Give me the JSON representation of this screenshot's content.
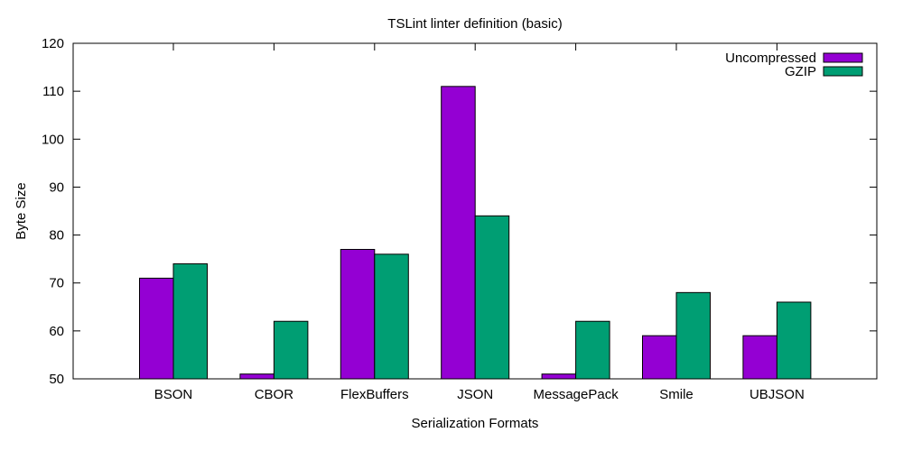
{
  "chart_data": {
    "type": "bar",
    "title": "TSLint linter definition (basic)",
    "xlabel": "Serialization Formats",
    "ylabel": "Byte Size",
    "ylim": [
      50,
      120
    ],
    "yticks": [
      50,
      60,
      70,
      80,
      90,
      100,
      110,
      120
    ],
    "categories": [
      "BSON",
      "CBOR",
      "FlexBuffers",
      "JSON",
      "MessagePack",
      "Smile",
      "UBJSON"
    ],
    "series": [
      {
        "name": "Uncompressed",
        "color": "#9400d3",
        "values": [
          71,
          51,
          77,
          111,
          51,
          59,
          59
        ]
      },
      {
        "name": "GZIP",
        "color": "#009e73",
        "values": [
          74,
          62,
          76,
          84,
          62,
          68,
          66
        ]
      }
    ],
    "legend": "top-right",
    "grid": false
  }
}
